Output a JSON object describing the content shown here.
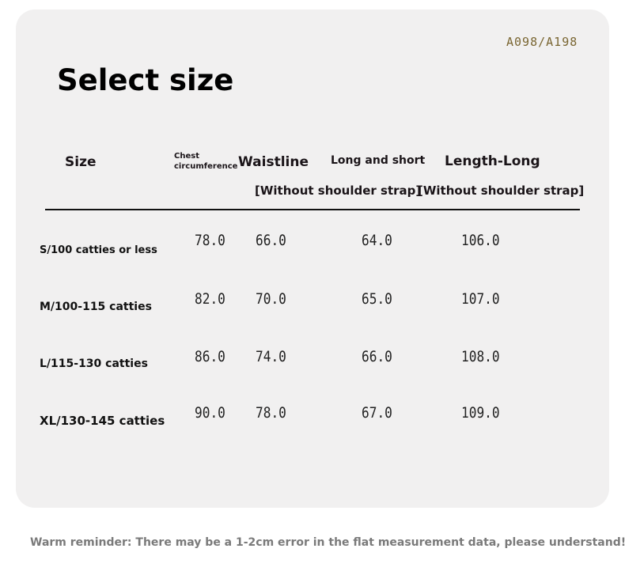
{
  "code": "A098/A198",
  "title": "Select size",
  "headers": {
    "size": "Size",
    "chest_1": "Chest",
    "chest_2": "circumference",
    "waist": "Waistline",
    "long_short": "Long and short",
    "length": "Length-Long",
    "note1": "[Without shoulder strap]",
    "note2": "[Without shoulder strap]"
  },
  "rows": [
    {
      "label": "S/100 catties or less",
      "chest": "78.0",
      "waist": "66.0",
      "long_short": "64.0",
      "length": "106.0"
    },
    {
      "label": "M/100-115 catties",
      "chest": "82.0",
      "waist": "70.0",
      "long_short": "65.0",
      "length": "107.0"
    },
    {
      "label": "L/115-130 catties",
      "chest": "86.0",
      "waist": "74.0",
      "long_short": "66.0",
      "length": "108.0"
    },
    {
      "label": "XL/130-145 catties",
      "chest": "90.0",
      "waist": "78.0",
      "long_short": "67.0",
      "length": "109.0"
    }
  ],
  "reminder": "Warm reminder: There may be a 1-2cm error in the flat measurement data, please understand!"
}
